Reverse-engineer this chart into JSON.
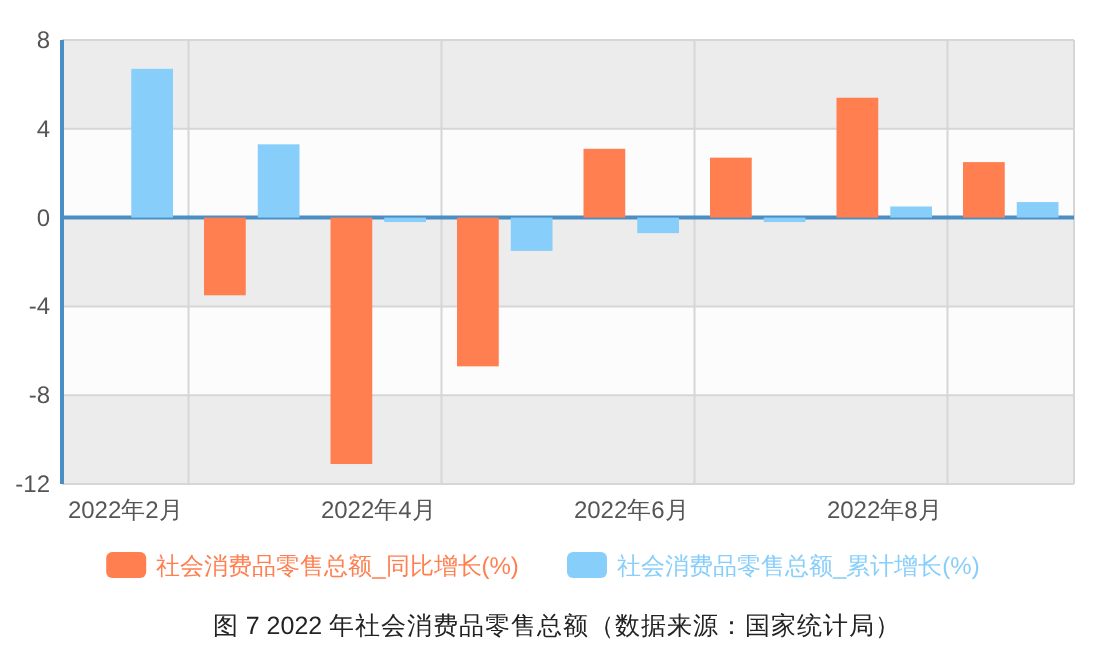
{
  "chart_data": {
    "type": "bar",
    "title": "图 7 2022 年社会消费品零售总额（数据来源：国家统计局）",
    "categories": [
      "2022年2月",
      null,
      "2022年4月",
      null,
      "2022年6月",
      null,
      "2022年8月",
      null
    ],
    "series": [
      {
        "name": "社会消费品零售总额_同比增长(%)",
        "color": "#ff7f50",
        "values": [
          null,
          -3.5,
          -11.1,
          -6.7,
          3.1,
          2.7,
          5.4,
          2.5
        ]
      },
      {
        "name": "社会消费品零售总额_累计增长(%)",
        "color": "#87cefa",
        "values": [
          6.7,
          3.3,
          -0.2,
          -1.5,
          -0.7,
          -0.2,
          0.5,
          0.7
        ]
      }
    ],
    "ylim": [
      -12,
      8
    ],
    "yticks": [
      -12,
      -8,
      -4,
      0,
      4,
      8
    ],
    "grid": true,
    "legend": "bottom",
    "ref_lines": [
      {
        "axis": "y",
        "value": 0,
        "color": "#4b8ec4"
      }
    ]
  }
}
